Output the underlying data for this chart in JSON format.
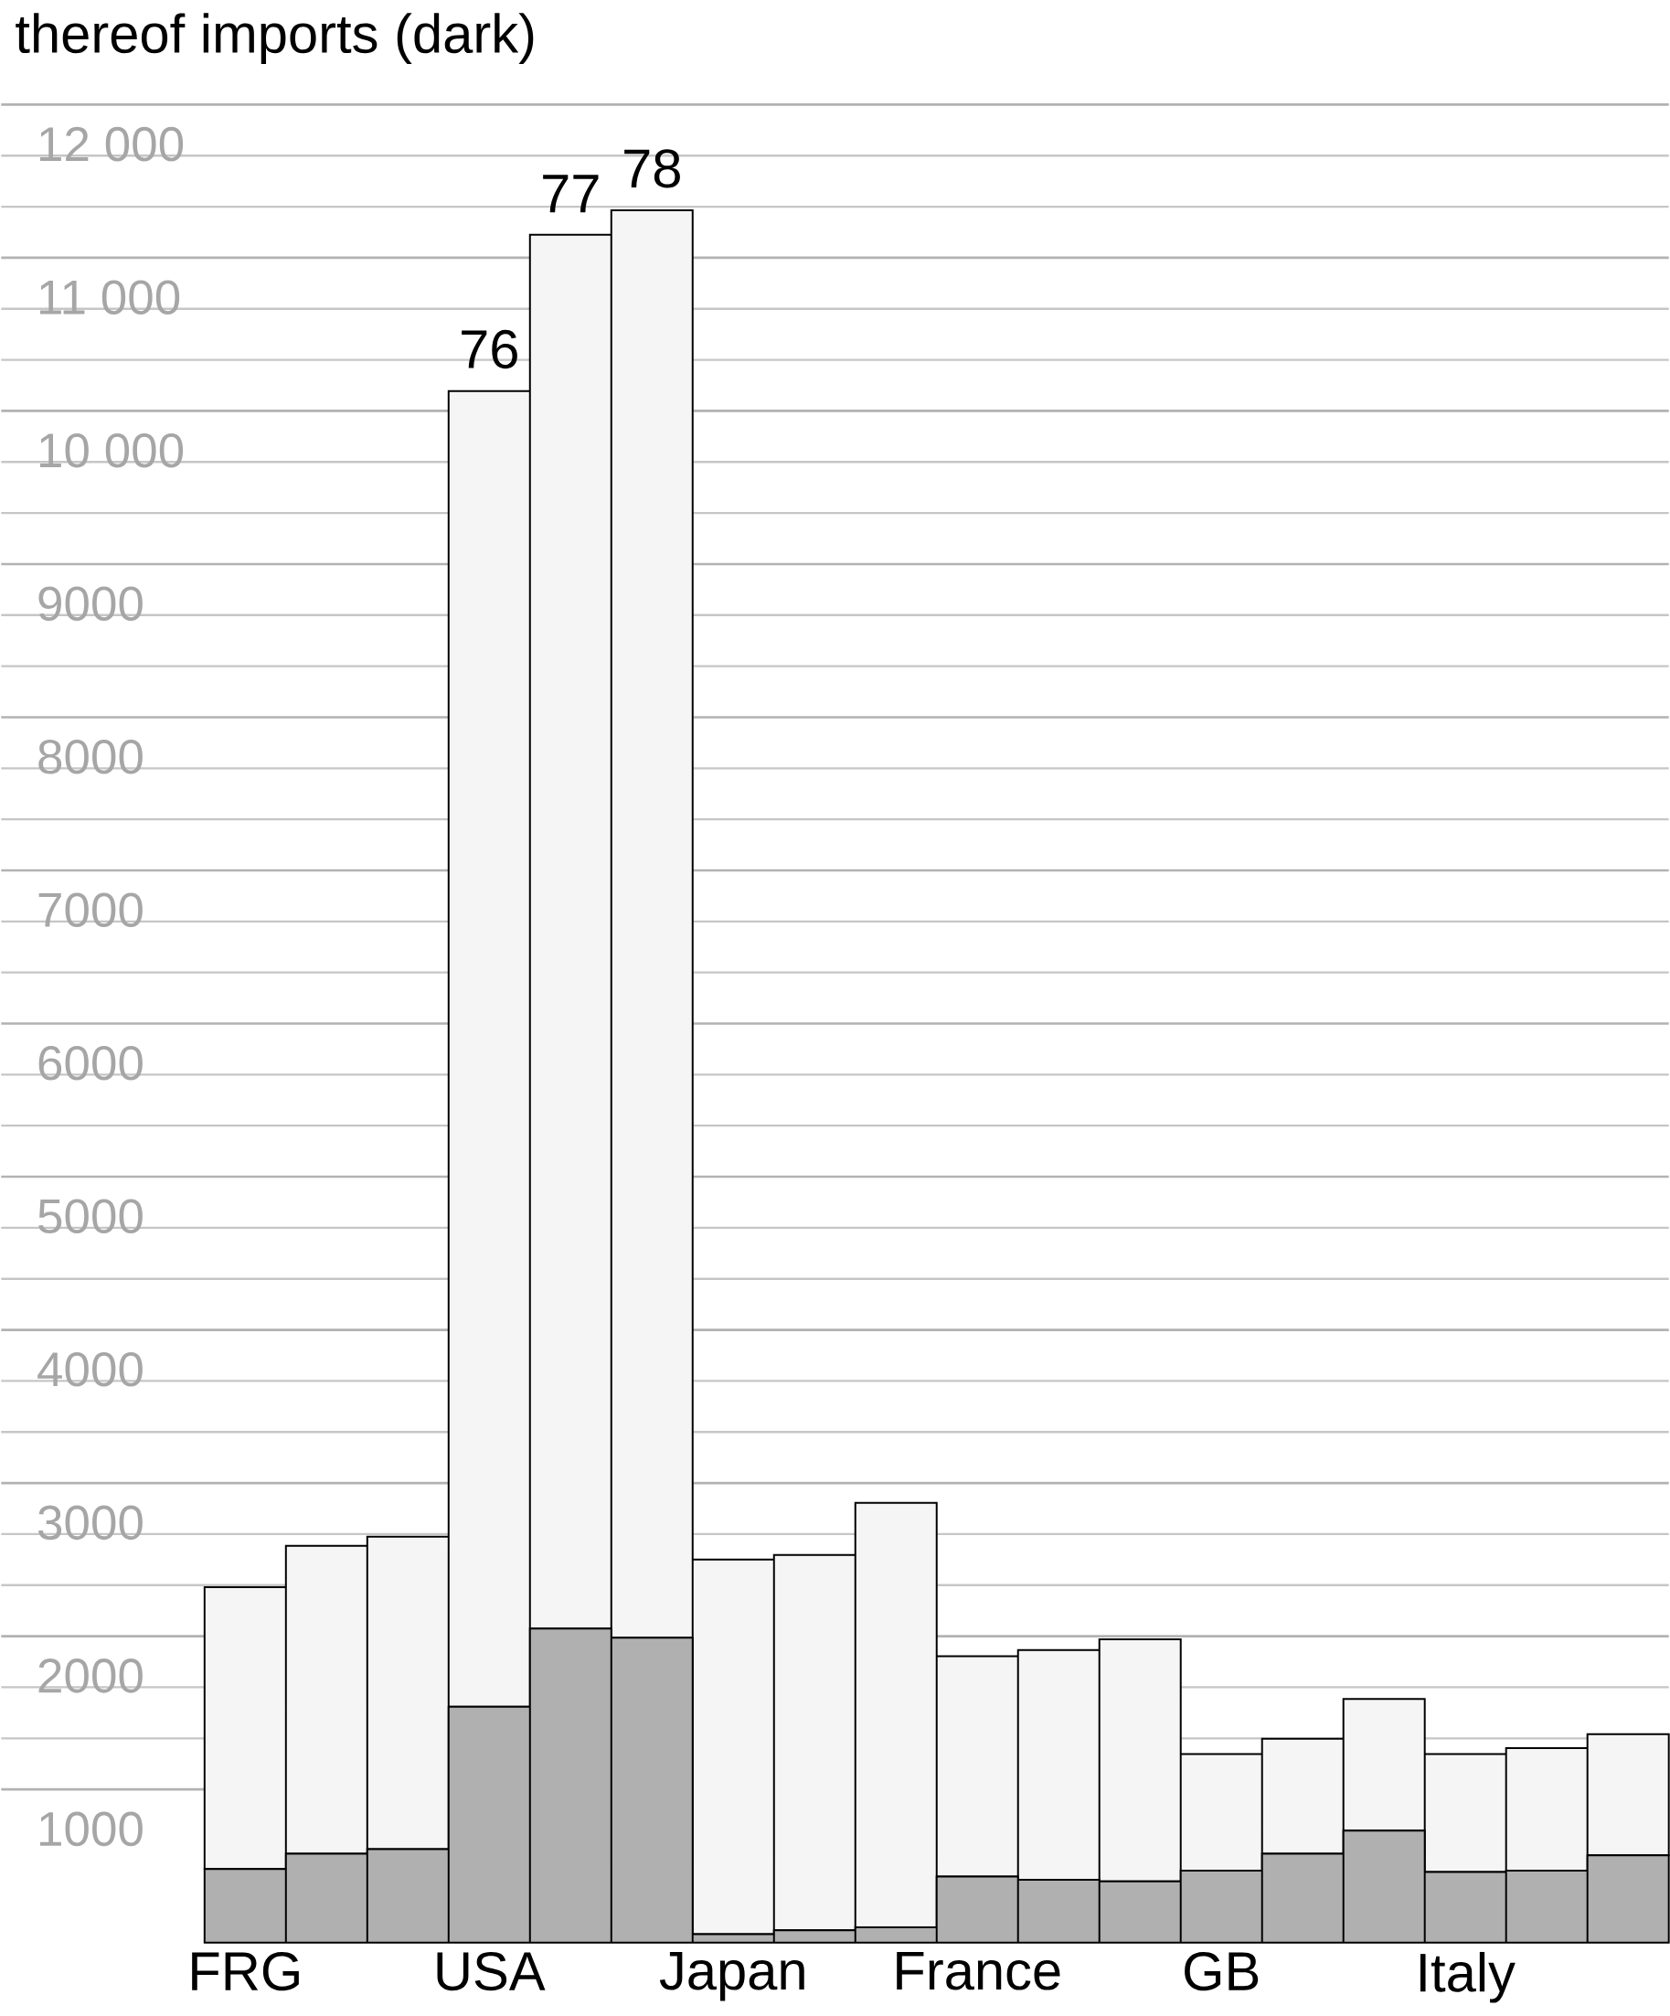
{
  "chart_data": {
    "type": "bar",
    "title": "thereof imports (dark)",
    "categories": [
      "FRG",
      null,
      null,
      "USA",
      null,
      null,
      "Japan",
      null,
      null,
      "France",
      null,
      null,
      "GB",
      null,
      null,
      "Italy",
      null,
      null
    ],
    "stacked": true,
    "series": [
      {
        "color": "#b0b0b0",
        "values": [
          480,
          580,
          610,
          1540,
          2050,
          1990,
          55,
          80,
          100,
          430,
          410,
          400,
          470,
          580,
          730,
          460,
          470,
          570
        ]
      },
      {
        "color": "#f5f5f5",
        "values": [
          1840,
          2010,
          2040,
          8590,
          9100,
          9320,
          2445,
          2450,
          2770,
          1440,
          1500,
          1580,
          760,
          750,
          860,
          770,
          800,
          790
        ]
      }
    ],
    "ylim": [
      0,
      12000
    ],
    "yticks": [
      1000,
      2000,
      3000,
      4000,
      5000,
      6000,
      7000,
      8000,
      9000,
      {
        "value": 10000,
        "label": "10 000"
      },
      {
        "value": 11000,
        "label": "11 000"
      },
      {
        "value": 12000,
        "label": "12 000"
      }
    ],
    "grid": true,
    "annotations": [
      {
        "text": "76",
        "y": 10130
      },
      {
        "text": "77",
        "y": 11150
      },
      {
        "text": "78",
        "y": 11310
      }
    ]
  }
}
